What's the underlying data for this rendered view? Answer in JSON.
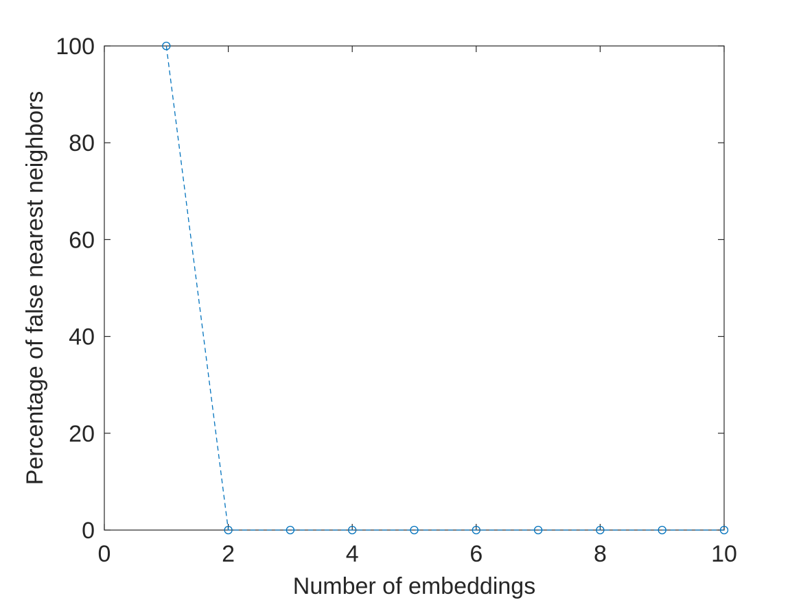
{
  "chart_data": {
    "type": "line",
    "title": "",
    "xlabel": "Number of embeddings",
    "ylabel": "Percentage of false nearest neighbors",
    "xlim": [
      0,
      10
    ],
    "ylim": [
      0,
      100
    ],
    "x_ticks": [
      "0",
      "2",
      "4",
      "6",
      "8",
      "10"
    ],
    "y_ticks": [
      "0",
      "20",
      "40",
      "60",
      "80",
      "100"
    ],
    "grid": false,
    "legend": "none",
    "series": [
      {
        "x": [
          1,
          2,
          3,
          4,
          5,
          6,
          7,
          8,
          9,
          10
        ],
        "values": [
          100,
          0,
          0,
          0,
          0,
          0,
          0,
          0,
          0,
          0
        ],
        "color": "#0072BD",
        "line_style": "dashed",
        "marker": "circle"
      }
    ]
  }
}
